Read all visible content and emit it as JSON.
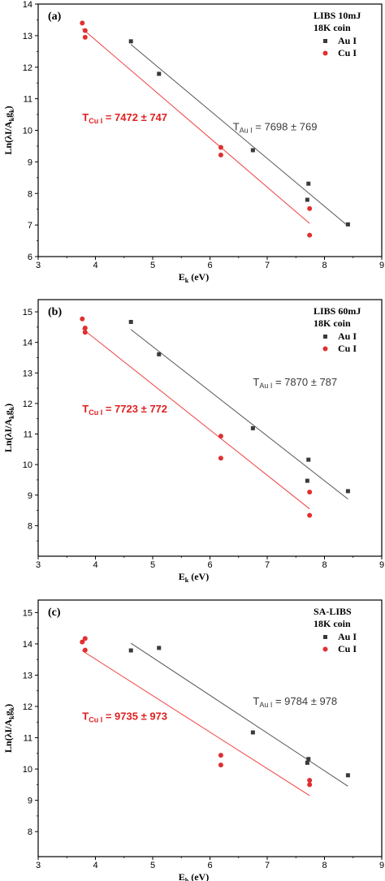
{
  "chart_data": [
    {
      "type": "scatter",
      "panel_label": "(a)",
      "legend_title_1": "LIBS 10mJ",
      "legend_title_2": "18K coin",
      "legend_placement": "top-right",
      "xlabel_main": "E",
      "xlabel_sub": "k",
      "xlabel_unit": " (eV)",
      "ylabel": "Ln(λI/A",
      "ylabel_sub1": "k",
      "ylabel_mid": "g",
      "ylabel_sub2": "k",
      "ylabel_end": ")",
      "xlim": [
        3,
        9
      ],
      "ylim": [
        6,
        14
      ],
      "xticks": [
        "3",
        "4",
        "5",
        "6",
        "7",
        "8",
        "9"
      ],
      "yticks": [
        "6",
        "7",
        "8",
        "9",
        "10",
        "11",
        "12",
        "13",
        "14"
      ],
      "grid": false,
      "series": [
        {
          "name": "Au I",
          "marker": "square",
          "color": "#3a3a3a",
          "fit_color": "#555555",
          "points": [
            [
              4.62,
              12.82
            ],
            [
              5.11,
              11.79
            ],
            [
              6.75,
              9.37
            ],
            [
              7.72,
              8.31
            ],
            [
              7.7,
              7.8
            ],
            [
              8.41,
              7.02
            ]
          ],
          "fit": [
            [
              4.62,
              12.72
            ],
            [
              8.41,
              6.97
            ]
          ],
          "annotation": {
            "main": "T",
            "sub": "Au I",
            "text": " = 7698  ± 769",
            "at": [
              6.4,
              10.0
            ],
            "color": "#3a3a3a"
          }
        },
        {
          "name": "Cu I",
          "marker": "circle",
          "color": "#e03030",
          "fit_color": "#f04040",
          "points": [
            [
              3.77,
              13.4
            ],
            [
              3.82,
              13.16
            ],
            [
              3.82,
              12.95
            ],
            [
              6.19,
              9.46
            ],
            [
              6.19,
              9.22
            ],
            [
              7.74,
              7.52
            ],
            [
              7.74,
              6.68
            ]
          ],
          "fit": [
            [
              3.77,
              13.22
            ],
            [
              7.74,
              7.05
            ]
          ],
          "annotation": {
            "main": "T",
            "sub": "Cu I",
            "text": " = 7472  ± 747",
            "at": [
              3.77,
              10.3
            ],
            "color": "#e02020"
          }
        }
      ]
    },
    {
      "type": "scatter",
      "panel_label": "(b)",
      "legend_title_1": "LIBS 60mJ",
      "legend_title_2": "18K coin",
      "legend_placement": "top-right",
      "xlabel_main": "E",
      "xlabel_sub": "k",
      "xlabel_unit": " (eV)",
      "ylabel": "Ln(λI/A",
      "ylabel_sub1": "k",
      "ylabel_mid": "g",
      "ylabel_sub2": "k",
      "ylabel_end": ")",
      "xlim": [
        3,
        9
      ],
      "ylim": [
        7,
        15.4
      ],
      "xticks": [
        "3",
        "4",
        "5",
        "6",
        "7",
        "8",
        "9"
      ],
      "yticks": [
        "8",
        "9",
        "10",
        "11",
        "12",
        "13",
        "14",
        "15"
      ],
      "grid": false,
      "series": [
        {
          "name": "Au I",
          "marker": "square",
          "color": "#3a3a3a",
          "fit_color": "#555555",
          "points": [
            [
              4.62,
              14.67
            ],
            [
              5.11,
              13.61
            ],
            [
              6.75,
              11.19
            ],
            [
              7.72,
              10.16
            ],
            [
              7.7,
              9.47
            ],
            [
              8.41,
              9.13
            ]
          ],
          "fit": [
            [
              4.62,
              14.42
            ],
            [
              8.41,
              8.87
            ]
          ],
          "annotation": {
            "main": "T",
            "sub": "Au I",
            "text": " = 7870  ± 787",
            "at": [
              6.75,
              12.58
            ],
            "color": "#3a3a3a"
          }
        },
        {
          "name": "Cu I",
          "marker": "circle",
          "color": "#e03030",
          "fit_color": "#f04040",
          "points": [
            [
              3.77,
              14.77
            ],
            [
              3.82,
              14.47
            ],
            [
              3.82,
              14.33
            ],
            [
              6.19,
              10.93
            ],
            [
              6.19,
              10.21
            ],
            [
              7.74,
              9.1
            ],
            [
              7.74,
              8.34
            ]
          ],
          "fit": [
            [
              3.77,
              14.45
            ],
            [
              7.74,
              8.55
            ]
          ],
          "annotation": {
            "main": "T",
            "sub": "Cu I",
            "text": " = 7723  ± 772",
            "at": [
              3.77,
              11.71
            ],
            "color": "#e02020"
          }
        }
      ]
    },
    {
      "type": "scatter",
      "panel_label": "(c)",
      "legend_title_1": "SA-LIBS",
      "legend_title_2": "18K coin",
      "legend_placement": "top-right",
      "xlabel_main": "E",
      "xlabel_sub": "h",
      "xlabel_unit": " (eV)",
      "ylabel": "Ln(λI/A",
      "ylabel_sub1": "k",
      "ylabel_mid": "g",
      "ylabel_sub2": "k",
      "ylabel_end": ")",
      "xlim": [
        3,
        9
      ],
      "ylim": [
        7.2,
        15.4
      ],
      "xticks": [
        "3",
        "4",
        "5",
        "6",
        "7",
        "8",
        "9"
      ],
      "yticks": [
        "8",
        "9",
        "10",
        "11",
        "12",
        "13",
        "14",
        "15"
      ],
      "grid": false,
      "series": [
        {
          "name": "Au I",
          "marker": "square",
          "color": "#3a3a3a",
          "fit_color": "#555555",
          "points": [
            [
              4.62,
              13.79
            ],
            [
              5.11,
              13.87
            ],
            [
              6.75,
              11.17
            ],
            [
              7.72,
              10.32
            ],
            [
              7.7,
              10.2
            ],
            [
              8.41,
              9.8
            ]
          ],
          "fit": [
            [
              4.62,
              14.02
            ],
            [
              8.41,
              9.45
            ]
          ],
          "annotation": {
            "main": "T",
            "sub": "Au I",
            "text": " = 9784  ± 978",
            "at": [
              6.75,
              12.05
            ],
            "color": "#3a3a3a"
          }
        },
        {
          "name": "Cu I",
          "marker": "circle",
          "color": "#e03030",
          "fit_color": "#f04040",
          "points": [
            [
              3.77,
              14.06
            ],
            [
              3.82,
              14.17
            ],
            [
              3.82,
              13.8
            ],
            [
              6.19,
              10.44
            ],
            [
              6.19,
              10.13
            ],
            [
              7.74,
              9.64
            ],
            [
              7.74,
              9.5
            ]
          ],
          "fit": [
            [
              3.77,
              13.78
            ],
            [
              7.74,
              9.15
            ]
          ],
          "annotation": {
            "main": "T",
            "sub": "Cu I",
            "text": " = 9735  ± 973",
            "at": [
              3.77,
              11.57
            ],
            "color": "#e02020"
          }
        }
      ]
    }
  ]
}
